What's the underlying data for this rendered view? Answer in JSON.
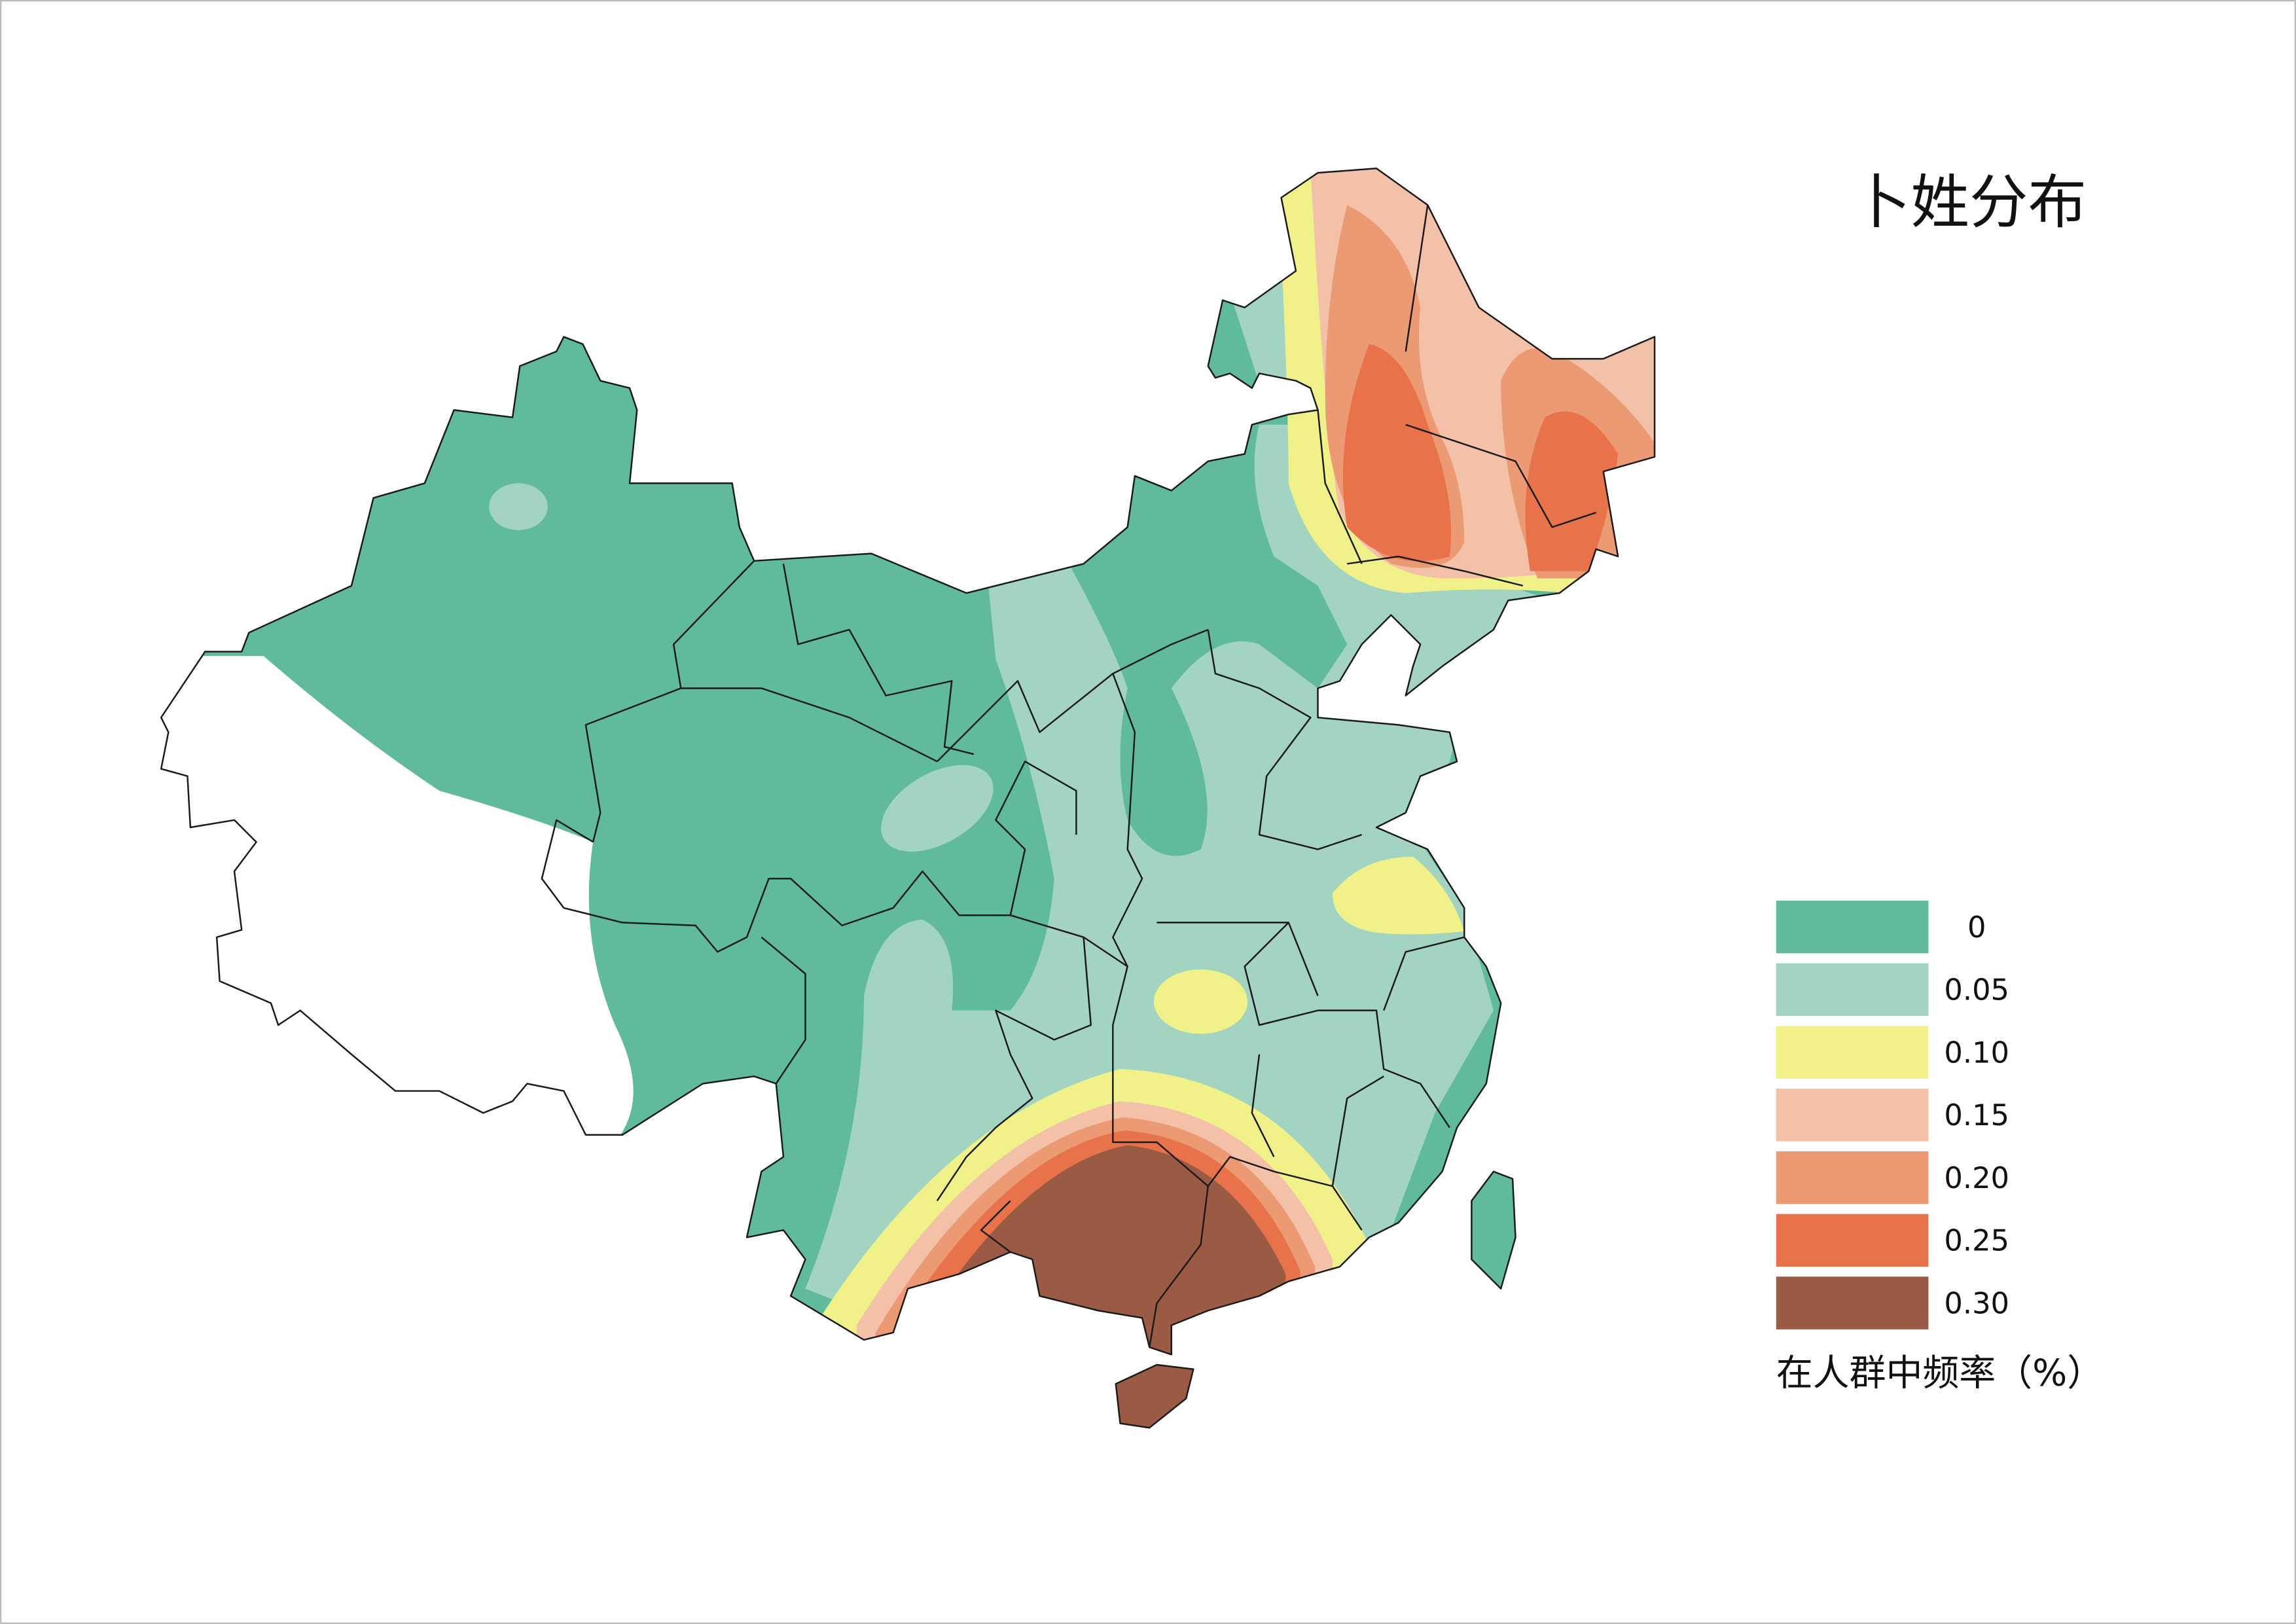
{
  "title": "卜姓分布",
  "legend": {
    "title": "在人群中频率（%）",
    "items": [
      {
        "label": "0",
        "color": "#5fbb9c"
      },
      {
        "label": "0.05",
        "color": "#a3d4c2"
      },
      {
        "label": "0.10",
        "color": "#f1f18a"
      },
      {
        "label": "0.15",
        "color": "#f2c1a8"
      },
      {
        "label": "0.20",
        "color": "#ec9a73"
      },
      {
        "label": "0.25",
        "color": "#e8734a"
      },
      {
        "label": "0.30",
        "color": "#9b5a43"
      }
    ]
  }
}
